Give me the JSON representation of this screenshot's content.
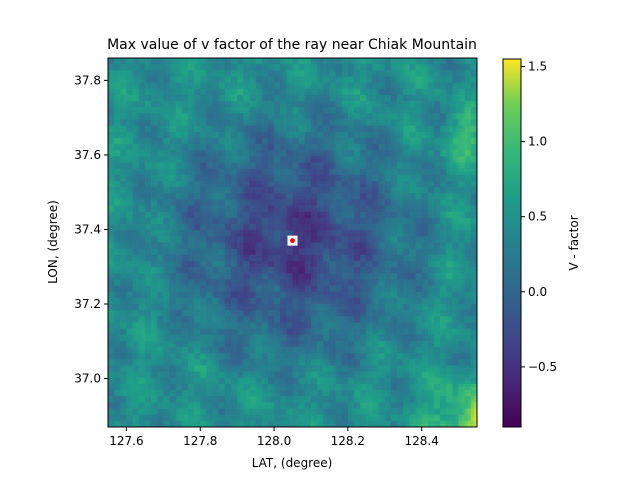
{
  "chart_data": {
    "type": "heatmap",
    "title": "Max value of v factor of the ray near Chiak Mountain",
    "xlabel": "LAT, (degree)",
    "ylabel": "LON, (degree)",
    "xlim": [
      127.55,
      128.55
    ],
    "ylim": [
      36.87,
      37.86
    ],
    "xticks": [
      127.6,
      127.8,
      128.0,
      128.2,
      128.4
    ],
    "xtick_labels": [
      "127.6",
      "127.8",
      "128.0",
      "128.2",
      "128.4"
    ],
    "yticks": [
      37.0,
      37.2,
      37.4,
      37.6,
      37.8
    ],
    "ytick_labels": [
      "37.0",
      "37.2",
      "37.4",
      "37.6",
      "37.8"
    ],
    "colormap": "viridis",
    "colorbar": {
      "label": "V - factor",
      "vmin": -0.9,
      "vmax": 1.55,
      "ticks": [
        -0.5,
        0.0,
        0.5,
        1.0,
        1.5
      ],
      "tick_labels": [
        "−0.5",
        "0.0",
        "0.5",
        "1.0",
        "1.5"
      ]
    },
    "marker": {
      "x": 128.05,
      "y": 37.37,
      "color": "#ff0000",
      "box_color": "#ffffff"
    },
    "grid": false,
    "grid_description": "approx. 120x120 cells; low values (about -0.5) in central basin around the marker, rising to about 0.3-0.6 toward edges, local highs about 1.0-1.5 at bottom-right corner"
  }
}
